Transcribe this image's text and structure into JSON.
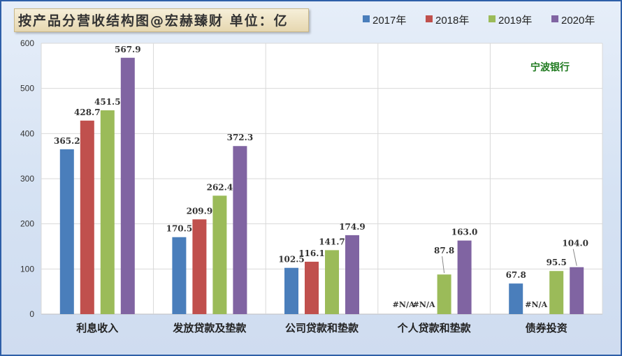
{
  "chart_data": {
    "type": "bar",
    "title": "按产品分营收结构图@宏赫臻财 单位：亿",
    "annotation": "宁波银行",
    "categories": [
      "利息收入",
      "发放贷款及垫款",
      "公司贷款和垫款",
      "个人贷款和垫款",
      "债券投资"
    ],
    "series": [
      {
        "name": "2017年",
        "color": "#4a7ebb",
        "values": [
          365.2,
          170.5,
          102.5,
          null,
          67.8
        ],
        "labels": [
          "365.2",
          "170.5",
          "102.5",
          "#N/A",
          "67.8"
        ]
      },
      {
        "name": "2018年",
        "color": "#c0504d",
        "values": [
          428.7,
          209.9,
          116.1,
          null,
          null
        ],
        "labels": [
          "428.7",
          "209.9",
          "116.1",
          "#N/A",
          "#N/A"
        ]
      },
      {
        "name": "2019年",
        "color": "#9bbb59",
        "values": [
          451.5,
          262.4,
          141.7,
          87.8,
          95.5
        ],
        "labels": [
          "451.5",
          "262.4",
          "141.7",
          "87.8",
          "95.5"
        ]
      },
      {
        "name": "2020年",
        "color": "#8064a2",
        "values": [
          567.9,
          372.3,
          174.9,
          163.0,
          104.0
        ],
        "labels": [
          "567.9",
          "372.3",
          "174.9",
          "163.0",
          "104.0"
        ]
      }
    ],
    "ylim": [
      0,
      600
    ],
    "yticks": [
      0,
      100,
      200,
      300,
      400,
      500,
      600
    ],
    "grid": true,
    "legend_position": "top-right"
  }
}
